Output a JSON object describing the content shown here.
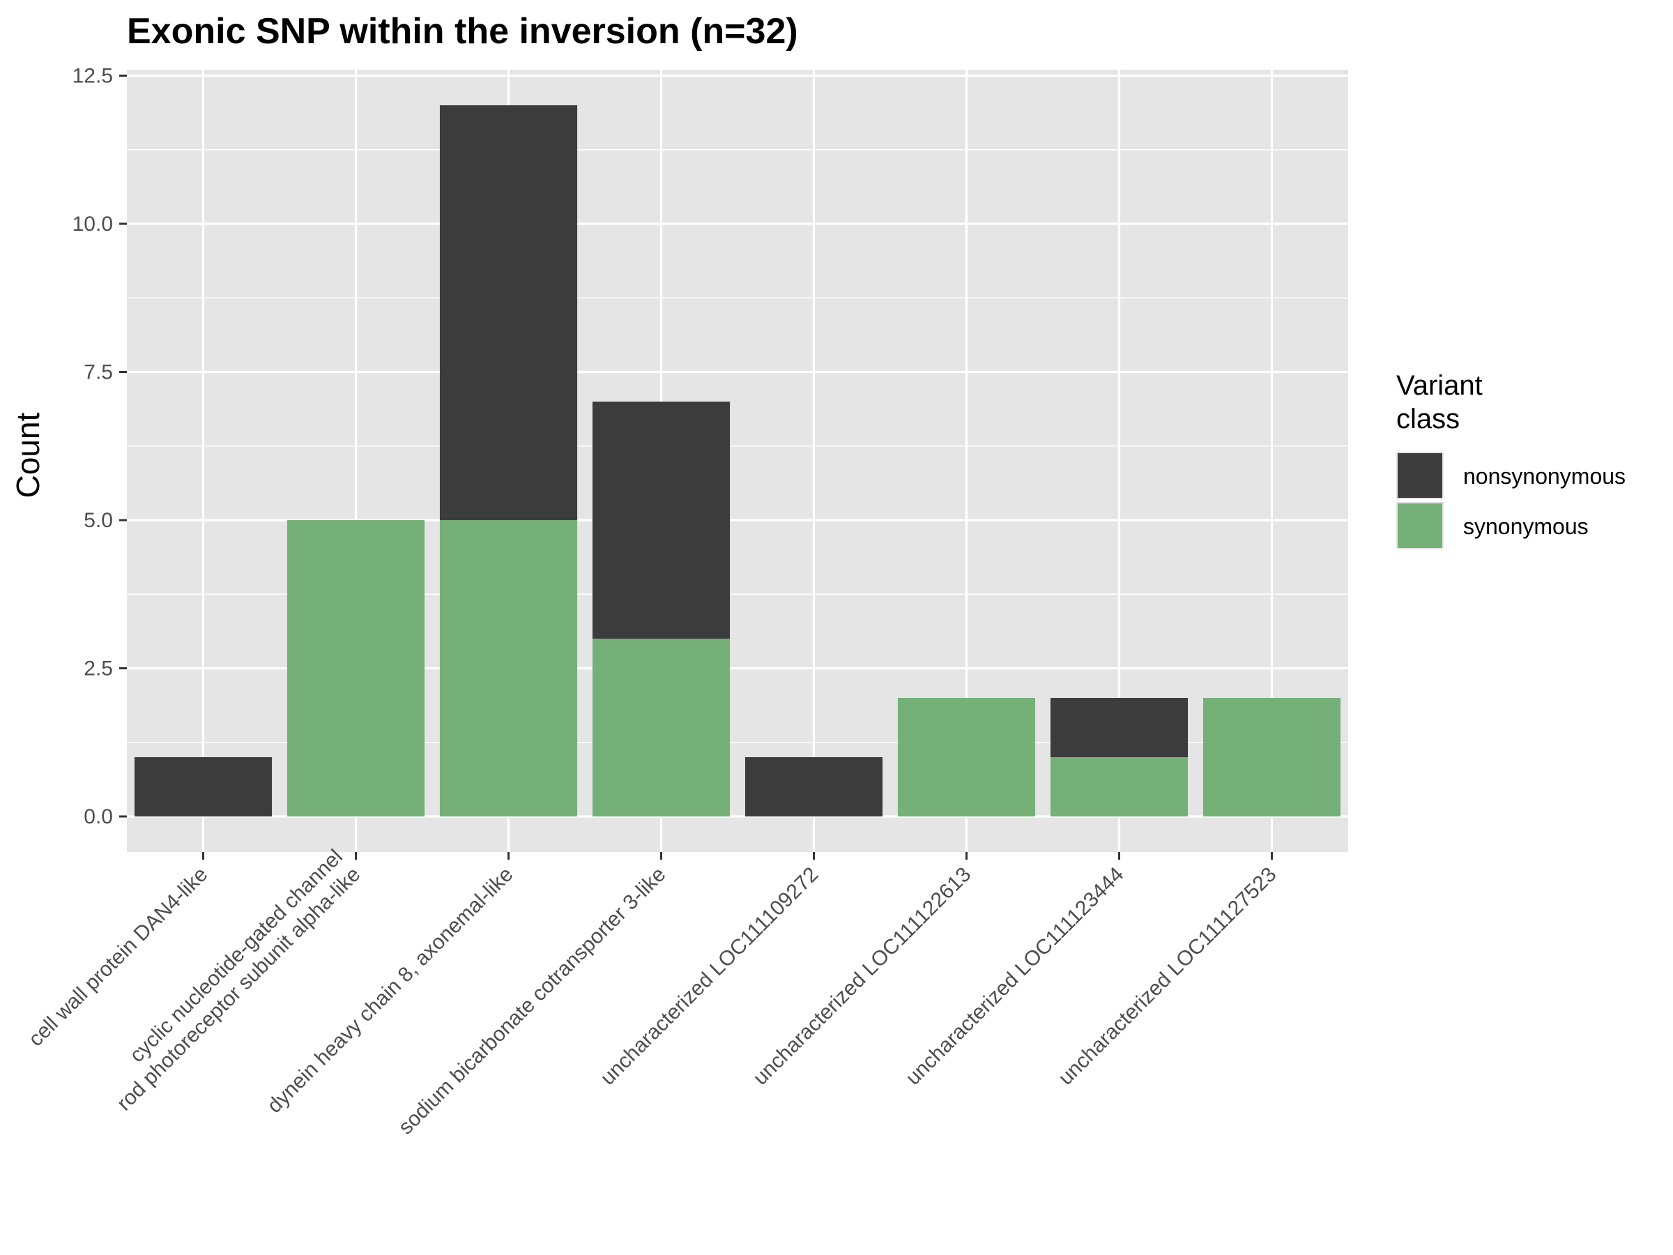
{
  "chart_data": {
    "type": "bar",
    "stacked": true,
    "title": "Exonic SNP within the inversion (n=32)",
    "xlabel": "",
    "ylabel": "Count",
    "ylim": [
      -0.6,
      12.6
    ],
    "yticks": [
      0.0,
      2.5,
      5.0,
      7.5,
      10.0,
      12.5
    ],
    "ytick_labels": [
      "0.0",
      "2.5",
      "5.0",
      "7.5",
      "10.0",
      "12.5"
    ],
    "grid": true,
    "categories": [
      [
        "cell wall protein DAN4-like"
      ],
      [
        "cyclic nucleotide-gated channel",
        "rod photoreceptor subunit alpha-like"
      ],
      [
        "dynein heavy chain 8, axonemal-like"
      ],
      [
        "sodium bicarbonate cotransporter 3-like"
      ],
      [
        "uncharacterized LOC111109272"
      ],
      [
        "uncharacterized LOC111122613"
      ],
      [
        "uncharacterized LOC111123444"
      ],
      [
        "uncharacterized LOC111127523"
      ]
    ],
    "series": [
      {
        "name": "synonymous",
        "color": "#74b077",
        "values": [
          0,
          5,
          5,
          3,
          0,
          2,
          1,
          2
        ]
      },
      {
        "name": "nonsynonymous",
        "color": "#3c3c3c",
        "values": [
          1,
          0,
          7,
          4,
          1,
          0,
          1,
          0
        ]
      }
    ],
    "legend": {
      "title_lines": [
        "Variant",
        "class"
      ],
      "placement": "right",
      "order": [
        "nonsynonymous",
        "synonymous"
      ]
    },
    "colors": {
      "panel": "#e5e5e5",
      "grid": "#ffffff",
      "tick": "#333333"
    }
  }
}
